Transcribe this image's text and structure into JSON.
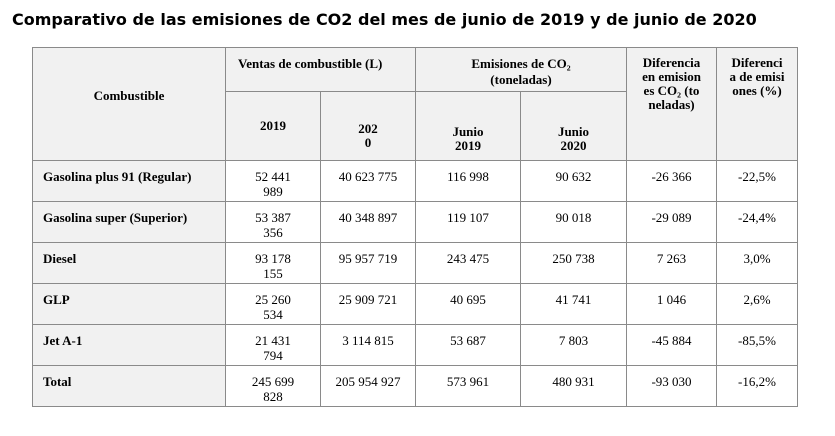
{
  "title": "Comparativo de las emisiones de CO2 del mes de junio de 2019 y de junio de 2020",
  "headers": {
    "combustible": "Combustible",
    "ventas": "Ventas de combustible (L)",
    "y2019": "2019",
    "y2020": "2020",
    "emisiones": "Emisiones de CO₂ (toneladas)",
    "junio2019": "Junio 2019",
    "junio2020": "Junio 2020",
    "dif_ton": "Diferencia en emisiones CO₂ (toneladas)",
    "dif_pct": "Diferencia de emisiones (%)"
  },
  "rows": [
    {
      "name": "Gasolina plus 91 (Regular)",
      "v2019": "52 441 989",
      "v2020": "40 623 775",
      "e2019": "116 998",
      "e2020": "90 632",
      "dif": "-26 366",
      "pct": "-22,5%"
    },
    {
      "name": "Gasolina super (Superior)",
      "v2019": "53 387 356",
      "v2020": "40 348 897",
      "e2019": "119 107",
      "e2020": "90 018",
      "dif": "-29 089",
      "pct": "-24,4%"
    },
    {
      "name": "Diesel",
      "v2019": "93 178 155",
      "v2020": "95 957 719",
      "e2019": "243 475",
      "e2020": "250 738",
      "dif": "7 263",
      "pct": "3,0%"
    },
    {
      "name": "GLP",
      "v2019": "25 260 534",
      "v2020": "25 909 721",
      "e2019": "40 695",
      "e2020": "41 741",
      "dif": "1 046",
      "pct": "2,6%"
    },
    {
      "name": "Jet A-1",
      "v2019": "21 431 794",
      "v2020": "3 114 815",
      "e2019": "53 687",
      "e2020": "7 803",
      "dif": "-45 884",
      "pct": "-85,5%"
    },
    {
      "name": "Total",
      "v2019": "245 699 828",
      "v2020": "205 954 927",
      "e2019": "573 961",
      "e2020": "480 931",
      "dif": "-93 030",
      "pct": "-16,2%"
    }
  ]
}
